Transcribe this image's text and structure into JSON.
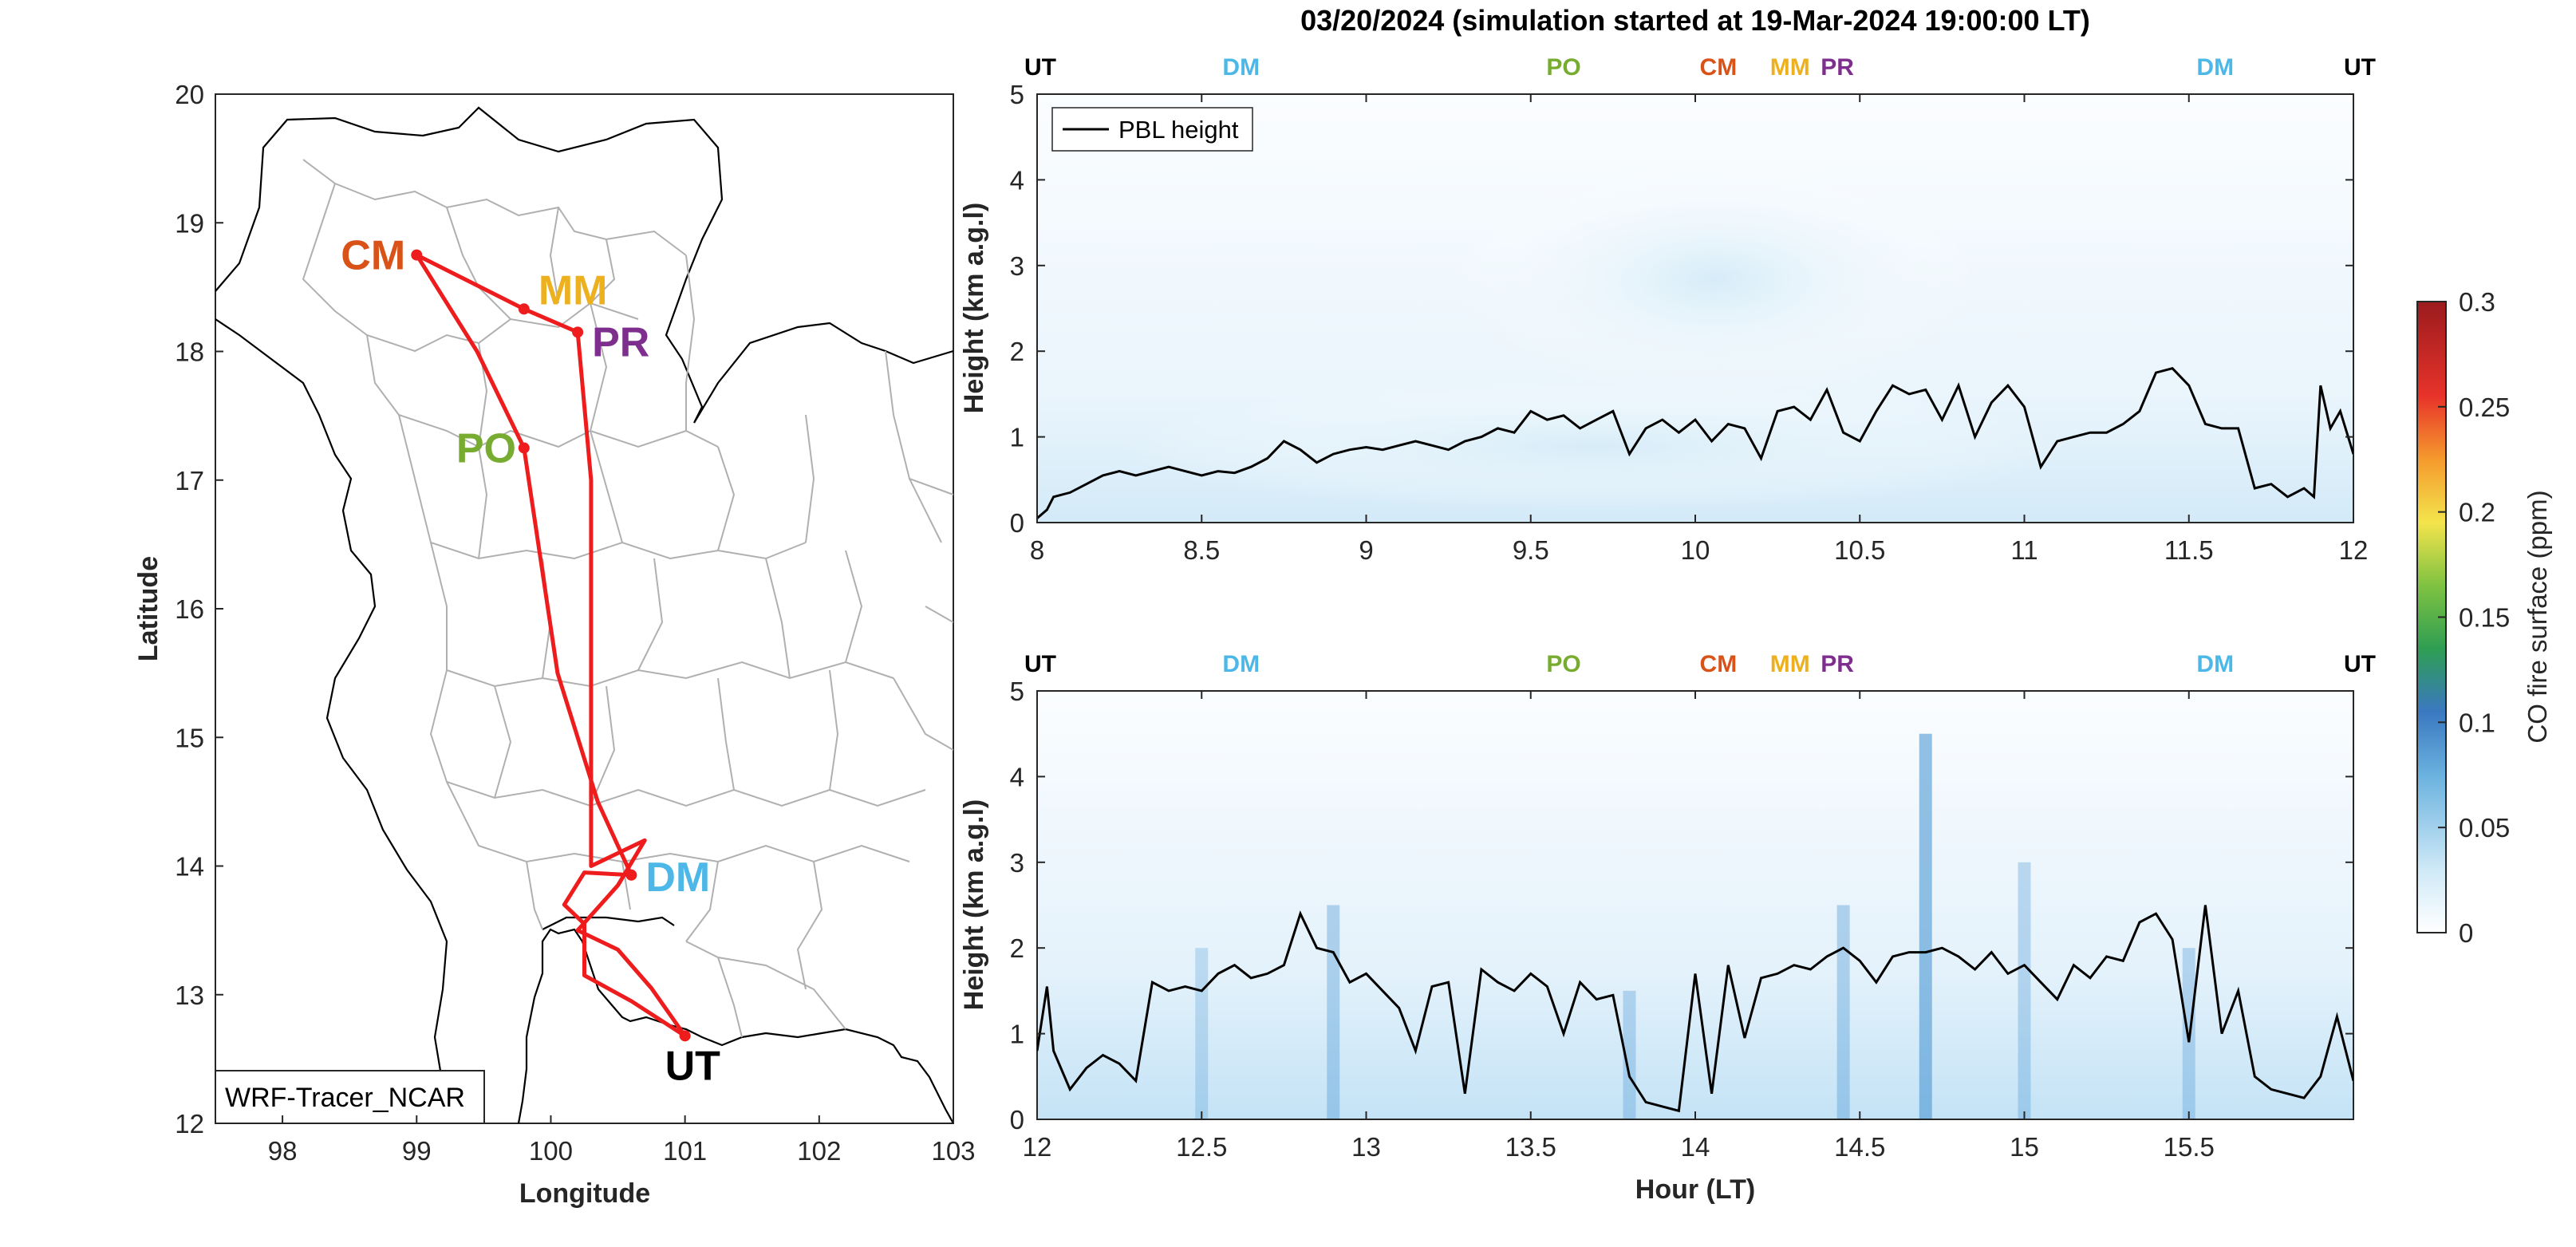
{
  "title": "03/20/2024 (simulation started at 19-Mar-2024 19:00:00 LT)",
  "colors": {
    "red": "#ee1c1c",
    "UT": "#000000",
    "DM": "#4db8e8",
    "PO": "#77ac30",
    "CM": "#d95319",
    "MM": "#edb120",
    "PR": "#7e2f8e",
    "pbl_line": "#000000",
    "border": "#b0b0b0"
  },
  "map": {
    "xlabel": "Longitude",
    "ylabel": "Latitude",
    "xlim": [
      97.5,
      103
    ],
    "ylim": [
      12,
      20
    ],
    "xticks": [
      "98",
      "99",
      "100",
      "101",
      "102",
      "103"
    ],
    "yticks": [
      "12",
      "13",
      "14",
      "15",
      "16",
      "17",
      "18",
      "19",
      "20"
    ],
    "model_label": "WRF-Tracer_NCAR",
    "sites": [
      {
        "name": "CM",
        "lon": 99.0,
        "lat": 18.75
      },
      {
        "name": "MM",
        "lon": 99.8,
        "lat": 18.33
      },
      {
        "name": "PR",
        "lon": 100.2,
        "lat": 18.15
      },
      {
        "name": "PO",
        "lon": 99.8,
        "lat": 17.25
      },
      {
        "name": "DM",
        "lon": 100.6,
        "lat": 13.93
      },
      {
        "name": "UT",
        "lon": 101.0,
        "lat": 12.68
      }
    ],
    "route": [
      [
        101.0,
        12.68
      ],
      [
        100.6,
        12.95
      ],
      [
        100.25,
        13.15
      ],
      [
        100.25,
        13.55
      ],
      [
        100.1,
        13.7
      ],
      [
        100.25,
        13.95
      ],
      [
        100.6,
        13.93
      ],
      [
        100.35,
        14.5
      ],
      [
        100.05,
        15.5
      ],
      [
        99.8,
        17.25
      ],
      [
        99.45,
        18.0
      ],
      [
        99.0,
        18.75
      ],
      [
        99.8,
        18.33
      ],
      [
        100.2,
        18.15
      ],
      [
        100.3,
        17.0
      ],
      [
        100.3,
        15.0
      ],
      [
        100.3,
        14.0
      ],
      [
        100.7,
        14.2
      ],
      [
        100.5,
        13.85
      ],
      [
        100.2,
        13.5
      ],
      [
        100.5,
        13.35
      ],
      [
        100.75,
        13.05
      ],
      [
        101.0,
        12.68
      ]
    ]
  },
  "colorbar": {
    "label": "CO fire surface (ppm)",
    "ticks": [
      "0",
      "0.05",
      "0.1",
      "0.15",
      "0.2",
      "0.25",
      "0.3"
    ]
  },
  "chart_data": [
    {
      "type": "line",
      "panel": "top",
      "xlabel": "",
      "ylabel": "Height (km a.g.l)",
      "xlim": [
        8,
        12
      ],
      "ylim": [
        0,
        5
      ],
      "xticks": [
        "8",
        "8.5",
        "9",
        "9.5",
        "10",
        "10.5",
        "11",
        "11.5",
        "12"
      ],
      "yticks": [
        "0",
        "1",
        "2",
        "3",
        "4",
        "5"
      ],
      "legend": "PBL height",
      "site_markers": [
        {
          "name": "UT",
          "x": 8.0
        },
        {
          "name": "DM",
          "x": 8.62
        },
        {
          "name": "PO",
          "x": 9.6
        },
        {
          "name": "CM",
          "x": 10.07
        },
        {
          "name": "MM",
          "x": 10.3
        },
        {
          "name": "PR",
          "x": 10.42
        },
        {
          "name": "DM",
          "x": 11.58
        },
        {
          "name": "UT",
          "x": 11.96
        }
      ],
      "series": [
        {
          "name": "PBL height",
          "x": [
            8.0,
            8.03,
            8.05,
            8.1,
            8.15,
            8.2,
            8.25,
            8.3,
            8.35,
            8.4,
            8.45,
            8.5,
            8.55,
            8.6,
            8.65,
            8.7,
            8.75,
            8.8,
            8.85,
            8.9,
            8.95,
            9.0,
            9.05,
            9.1,
            9.15,
            9.2,
            9.25,
            9.3,
            9.35,
            9.4,
            9.45,
            9.5,
            9.55,
            9.6,
            9.65,
            9.7,
            9.75,
            9.8,
            9.85,
            9.9,
            9.95,
            10.0,
            10.05,
            10.1,
            10.15,
            10.2,
            10.25,
            10.3,
            10.35,
            10.4,
            10.45,
            10.5,
            10.55,
            10.6,
            10.65,
            10.7,
            10.75,
            10.8,
            10.85,
            10.9,
            10.95,
            11.0,
            11.05,
            11.1,
            11.15,
            11.2,
            11.25,
            11.3,
            11.35,
            11.4,
            11.45,
            11.5,
            11.55,
            11.6,
            11.65,
            11.7,
            11.75,
            11.8,
            11.85,
            11.88,
            11.9,
            11.93,
            11.96,
            12.0
          ],
          "y": [
            0.05,
            0.15,
            0.3,
            0.35,
            0.45,
            0.55,
            0.6,
            0.55,
            0.6,
            0.65,
            0.6,
            0.55,
            0.6,
            0.58,
            0.65,
            0.75,
            0.95,
            0.85,
            0.7,
            0.8,
            0.85,
            0.88,
            0.85,
            0.9,
            0.95,
            0.9,
            0.85,
            0.95,
            1.0,
            1.1,
            1.05,
            1.3,
            1.2,
            1.25,
            1.1,
            1.2,
            1.3,
            0.8,
            1.1,
            1.2,
            1.05,
            1.2,
            0.95,
            1.15,
            1.1,
            0.75,
            1.3,
            1.35,
            1.2,
            1.55,
            1.05,
            0.95,
            1.3,
            1.6,
            1.5,
            1.55,
            1.2,
            1.6,
            1.0,
            1.4,
            1.6,
            1.35,
            0.65,
            0.95,
            1.0,
            1.05,
            1.05,
            1.15,
            1.3,
            1.75,
            1.8,
            1.6,
            1.15,
            1.1,
            1.1,
            0.4,
            0.45,
            0.3,
            0.4,
            0.3,
            1.6,
            1.1,
            1.3,
            0.8
          ]
        }
      ]
    },
    {
      "type": "line",
      "panel": "bottom",
      "xlabel": "Hour (LT)",
      "ylabel": "Height (km a.g.l)",
      "xlim": [
        12,
        16
      ],
      "ylim": [
        0,
        5
      ],
      "xticks": [
        "12",
        "12.5",
        "13",
        "13.5",
        "14",
        "14.5",
        "15",
        "15.5"
      ],
      "yticks": [
        "0",
        "1",
        "2",
        "3",
        "4",
        "5"
      ],
      "site_markers": [
        {
          "name": "UT",
          "x": 12.0
        },
        {
          "name": "DM",
          "x": 12.62
        },
        {
          "name": "PO",
          "x": 13.6
        },
        {
          "name": "CM",
          "x": 14.07
        },
        {
          "name": "MM",
          "x": 14.3
        },
        {
          "name": "PR",
          "x": 14.42
        },
        {
          "name": "DM",
          "x": 15.58
        },
        {
          "name": "UT",
          "x": 15.96
        }
      ],
      "series": [
        {
          "name": "PBL height",
          "x": [
            12.0,
            12.03,
            12.05,
            12.1,
            12.15,
            12.2,
            12.25,
            12.3,
            12.35,
            12.4,
            12.45,
            12.5,
            12.55,
            12.6,
            12.65,
            12.7,
            12.75,
            12.8,
            12.85,
            12.9,
            12.95,
            13.0,
            13.05,
            13.1,
            13.15,
            13.2,
            13.25,
            13.3,
            13.35,
            13.4,
            13.45,
            13.5,
            13.55,
            13.6,
            13.65,
            13.7,
            13.75,
            13.8,
            13.85,
            13.9,
            13.95,
            14.0,
            14.05,
            14.1,
            14.15,
            14.2,
            14.25,
            14.3,
            14.35,
            14.4,
            14.45,
            14.5,
            14.55,
            14.6,
            14.65,
            14.7,
            14.75,
            14.8,
            14.85,
            14.9,
            14.95,
            15.0,
            15.05,
            15.1,
            15.15,
            15.2,
            15.25,
            15.3,
            15.35,
            15.4,
            15.45,
            15.5,
            15.55,
            15.6,
            15.65,
            15.7,
            15.75,
            15.8,
            15.85,
            15.9,
            15.95,
            16.0
          ],
          "y": [
            0.8,
            1.55,
            0.8,
            0.35,
            0.6,
            0.75,
            0.65,
            0.45,
            1.6,
            1.5,
            1.55,
            1.5,
            1.7,
            1.8,
            1.65,
            1.7,
            1.8,
            2.4,
            2.0,
            1.95,
            1.6,
            1.7,
            1.5,
            1.3,
            0.8,
            1.55,
            1.6,
            0.3,
            1.75,
            1.6,
            1.5,
            1.7,
            1.55,
            1.0,
            1.6,
            1.4,
            1.45,
            0.5,
            0.2,
            0.15,
            0.1,
            1.7,
            0.3,
            1.8,
            0.95,
            1.65,
            1.7,
            1.8,
            1.75,
            1.9,
            2.0,
            1.85,
            1.6,
            1.9,
            1.95,
            1.95,
            2.0,
            1.9,
            1.75,
            1.95,
            1.7,
            1.8,
            1.6,
            1.4,
            1.8,
            1.65,
            1.9,
            1.85,
            2.3,
            2.4,
            2.1,
            0.9,
            2.5,
            1.0,
            1.5,
            0.5,
            0.35,
            0.3,
            0.25,
            0.5,
            1.2,
            0.45
          ]
        }
      ]
    }
  ]
}
